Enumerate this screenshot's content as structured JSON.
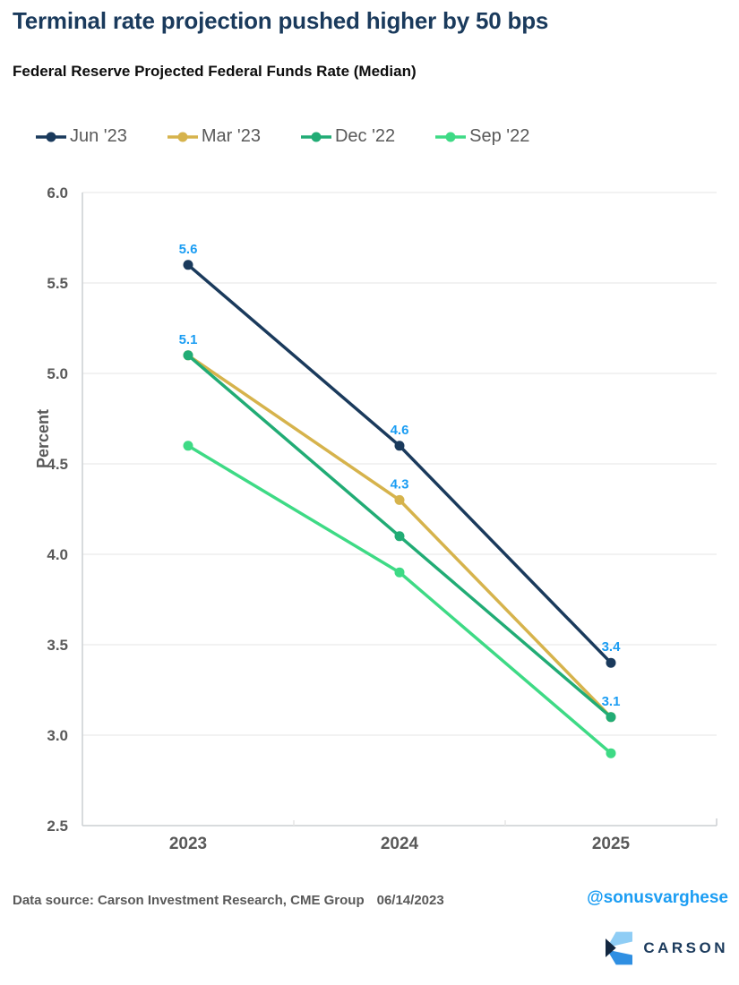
{
  "title": "Terminal rate projection pushed higher by 50 bps",
  "subtitle": "Federal Reserve Projected Federal Funds Rate (Median)",
  "chart_data": {
    "type": "line",
    "x": [
      "2023",
      "2024",
      "2025"
    ],
    "xlabel": "",
    "ylabel": "Percent",
    "ylim": [
      2.5,
      6.0
    ],
    "yticks": [
      6.0,
      5.5,
      5.0,
      4.5,
      4.0,
      3.5,
      3.0,
      2.5
    ],
    "grid": true,
    "legend_position": "top",
    "series": [
      {
        "name": "Jun '23",
        "color": "#1A3A5C",
        "values": [
          5.6,
          4.6,
          3.4
        ],
        "point_labels": [
          "5.6",
          "4.6",
          "3.4"
        ]
      },
      {
        "name": "Mar '23",
        "color": "#D6B34C",
        "values": [
          5.1,
          4.3,
          3.1
        ],
        "point_labels": [
          "5.1",
          "4.3",
          "3.1"
        ]
      },
      {
        "name": "Dec '22",
        "color": "#21AC75",
        "values": [
          5.1,
          4.1,
          3.1
        ],
        "point_labels": []
      },
      {
        "name": "Sep '22",
        "color": "#3EDA85",
        "values": [
          4.6,
          3.9,
          2.9
        ],
        "point_labels": []
      }
    ],
    "point_label_color": "#1B9DF3"
  },
  "colors": {
    "title_navy": "#1A3A5C",
    "tick_text_gray": "#595959",
    "grid_line": "#E6E6E6",
    "axis_line": "#CCCFD2",
    "data_label_blue": "#1B9DF3",
    "handle_blue": "#1B9DF3",
    "logo_light_blue": "#8FCDF5",
    "logo_mid_blue": "#2F8FE2",
    "logo_dark_navy": "#132740"
  },
  "footer": {
    "source": "Data source: Carson Investment Research, CME Group",
    "date": "06/14/2023",
    "handle": "@sonusvarghese",
    "logo_text": "CARSON"
  }
}
